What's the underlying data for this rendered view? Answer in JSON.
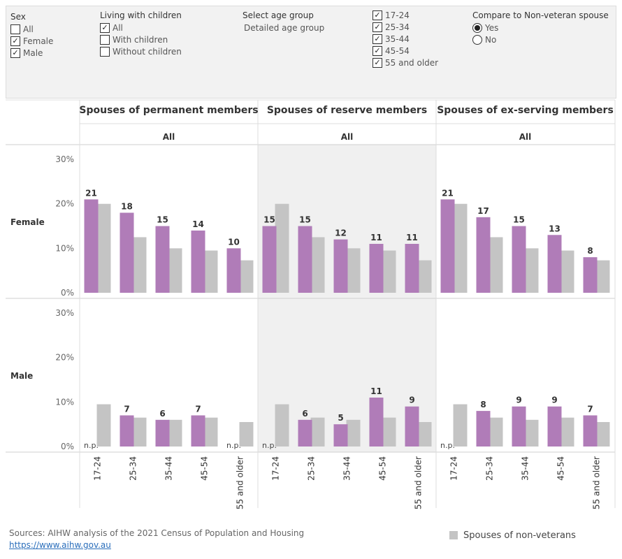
{
  "filters": {
    "sex": {
      "title": "Sex",
      "options": [
        {
          "label": "All",
          "checked": false
        },
        {
          "label": "Female",
          "checked": true
        },
        {
          "label": "Male",
          "checked": true
        }
      ]
    },
    "children": {
      "title": "Living with children",
      "options": [
        {
          "label": "All",
          "checked": true
        },
        {
          "label": "With children",
          "checked": false
        },
        {
          "label": "Without children",
          "checked": false
        }
      ]
    },
    "age_select": {
      "title": "Select age group",
      "value": "Detailed age group"
    },
    "ages": {
      "options": [
        {
          "label": "17-24",
          "checked": true
        },
        {
          "label": "25-34",
          "checked": true
        },
        {
          "label": "35-44",
          "checked": true
        },
        {
          "label": "45-54",
          "checked": true
        },
        {
          "label": "55 and older",
          "checked": true
        }
      ]
    },
    "compare": {
      "title": "Compare to Non-veteran spouse",
      "options": [
        {
          "label": "Yes",
          "selected": true
        },
        {
          "label": "No",
          "selected": false
        }
      ]
    }
  },
  "footer": {
    "source": "Sources: AIHW analysis of the 2021 Census of Population and Housing",
    "link": "https://www.aihw.gov.au",
    "legend_label": "Spouses of non-veterans"
  },
  "colors": {
    "veteran_bar": "#b07cb8",
    "nonveteran_bar": "#c4c4c4",
    "shaded_panel": "#f0f0f0",
    "filter_bg": "#f2f2f2"
  },
  "chart_data": {
    "type": "bar",
    "columns": [
      "Spouses of permanent members",
      "Spouses of reserve members",
      "Spouses of ex-serving members"
    ],
    "subheader": "All",
    "rows": [
      "Female",
      "Male"
    ],
    "categories": [
      "17-24",
      "25-34",
      "35-44",
      "45-54",
      "55 and older"
    ],
    "yticks": [
      "30%",
      "20%",
      "10%",
      "0%"
    ],
    "ylim": [
      0,
      33
    ],
    "not_published_label": "n.p.",
    "series_names": {
      "nonveteran": "Spouses of non-veterans"
    },
    "panels": [
      {
        "row": "Female",
        "column": "Spouses of permanent members",
        "values": [
          21,
          18,
          15,
          14,
          10
        ],
        "labels": [
          "21",
          "18",
          "15",
          "14",
          "10"
        ],
        "nonveteran": [
          20,
          12.5,
          10,
          9.5,
          7.3
        ]
      },
      {
        "row": "Female",
        "column": "Spouses of reserve members",
        "values": [
          15,
          15,
          12,
          11,
          11
        ],
        "labels": [
          "15",
          "15",
          "12",
          "11",
          "11"
        ],
        "nonveteran": [
          20,
          12.5,
          10,
          9.5,
          7.3
        ]
      },
      {
        "row": "Female",
        "column": "Spouses of ex-serving members",
        "values": [
          21,
          17,
          15,
          13,
          8
        ],
        "labels": [
          "21",
          "17",
          "15",
          "13",
          "8"
        ],
        "nonveteran": [
          20,
          12.5,
          10,
          9.5,
          7.3
        ]
      },
      {
        "row": "Male",
        "column": "Spouses of permanent members",
        "values": [
          null,
          7,
          6,
          7,
          null
        ],
        "labels": [
          "n.p.",
          "7",
          "6",
          "7",
          "n.p."
        ],
        "nonveteran": [
          9.5,
          6.5,
          6,
          6.5,
          5.5
        ]
      },
      {
        "row": "Male",
        "column": "Spouses of reserve members",
        "values": [
          null,
          6,
          5,
          11,
          9
        ],
        "labels": [
          "n.p.",
          "6",
          "5",
          "11",
          "9"
        ],
        "nonveteran": [
          9.5,
          6.5,
          6,
          6.5,
          5.5
        ]
      },
      {
        "row": "Male",
        "column": "Spouses of ex-serving members",
        "values": [
          null,
          8,
          9,
          9,
          7
        ],
        "labels": [
          "n.p.",
          "8",
          "9",
          "9",
          "7"
        ],
        "nonveteran": [
          9.5,
          6.5,
          6,
          6.5,
          5.5
        ]
      }
    ]
  }
}
